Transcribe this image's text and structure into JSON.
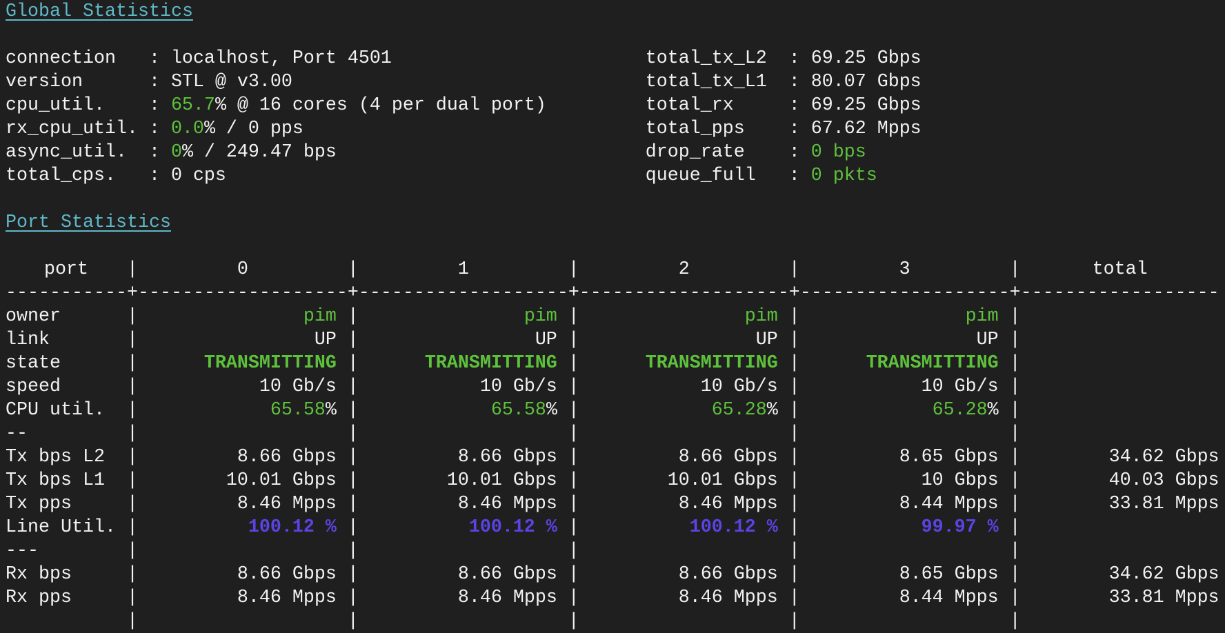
{
  "colors": {
    "background": "#1f1f1f",
    "text": "#f2f2f2",
    "heading": "#5fb8c8",
    "ok": "#5ec13c",
    "util": "#5a44e4"
  },
  "global": {
    "title": "Global Statistics",
    "left": [
      {
        "label": "connection",
        "value": [
          {
            "text": "localhost, Port 4501"
          }
        ]
      },
      {
        "label": "version",
        "value": [
          {
            "text": "STL @ v3.00"
          }
        ]
      },
      {
        "label": "cpu_util.",
        "value": [
          {
            "text": "65.7",
            "style": "green"
          },
          {
            "text": "% @ 16 cores (4 per dual port)"
          }
        ]
      },
      {
        "label": "rx_cpu_util.",
        "value": [
          {
            "text": "0.0",
            "style": "green"
          },
          {
            "text": "% / 0 pps"
          }
        ]
      },
      {
        "label": "async_util.",
        "value": [
          {
            "text": "0",
            "style": "green"
          },
          {
            "text": "% / 249.47 bps"
          }
        ]
      },
      {
        "label": "total_cps.",
        "value": [
          {
            "text": "0 cps"
          }
        ]
      }
    ],
    "right": [
      {
        "label": "total_tx_L2",
        "value": [
          {
            "text": "69.25 Gbps"
          }
        ]
      },
      {
        "label": "total_tx_L1",
        "value": [
          {
            "text": "80.07 Gbps"
          }
        ]
      },
      {
        "label": "total_rx",
        "value": [
          {
            "text": "69.25 Gbps"
          }
        ]
      },
      {
        "label": "total_pps",
        "value": [
          {
            "text": "67.62 Mpps"
          }
        ]
      },
      {
        "label": "drop_rate",
        "value": [
          {
            "text": "0 bps",
            "style": "green"
          }
        ]
      },
      {
        "label": "queue_full",
        "value": [
          {
            "text": "0 pkts",
            "style": "green"
          }
        ]
      }
    ]
  },
  "ports": {
    "title": "Port Statistics",
    "header": {
      "label": "port",
      "columns": [
        "0",
        "1",
        "2",
        "3",
        "total"
      ]
    },
    "rows": [
      {
        "label": "owner",
        "cells": [
          [
            {
              "text": "pim",
              "style": "green"
            }
          ],
          [
            {
              "text": "pim",
              "style": "green"
            }
          ],
          [
            {
              "text": "pim",
              "style": "green"
            }
          ],
          [
            {
              "text": "pim",
              "style": "green"
            }
          ],
          []
        ]
      },
      {
        "label": "link",
        "cells": [
          [
            {
              "text": "UP"
            }
          ],
          [
            {
              "text": "UP"
            }
          ],
          [
            {
              "text": "UP"
            }
          ],
          [
            {
              "text": "UP"
            }
          ],
          []
        ]
      },
      {
        "label": "state",
        "cells": [
          [
            {
              "text": "TRANSMITTING",
              "style": "green bold"
            }
          ],
          [
            {
              "text": "TRANSMITTING",
              "style": "green bold"
            }
          ],
          [
            {
              "text": "TRANSMITTING",
              "style": "green bold"
            }
          ],
          [
            {
              "text": "TRANSMITTING",
              "style": "green bold"
            }
          ],
          []
        ]
      },
      {
        "label": "speed",
        "cells": [
          [
            {
              "text": "10 Gb/s"
            }
          ],
          [
            {
              "text": "10 Gb/s"
            }
          ],
          [
            {
              "text": "10 Gb/s"
            }
          ],
          [
            {
              "text": "10 Gb/s"
            }
          ],
          []
        ]
      },
      {
        "label": "CPU util.",
        "cells": [
          [
            {
              "text": "65.58",
              "style": "green"
            },
            {
              "text": "%"
            }
          ],
          [
            {
              "text": "65.58",
              "style": "green"
            },
            {
              "text": "%"
            }
          ],
          [
            {
              "text": "65.28",
              "style": "green"
            },
            {
              "text": "%"
            }
          ],
          [
            {
              "text": "65.28",
              "style": "green"
            },
            {
              "text": "%"
            }
          ],
          []
        ]
      },
      {
        "label": "--",
        "cells": [
          [],
          [],
          [],
          [],
          []
        ]
      },
      {
        "label": "Tx bps L2",
        "cells": [
          [
            {
              "text": "8.66 Gbps"
            }
          ],
          [
            {
              "text": "8.66 Gbps"
            }
          ],
          [
            {
              "text": "8.66 Gbps"
            }
          ],
          [
            {
              "text": "8.65 Gbps"
            }
          ],
          [
            {
              "text": "34.62 Gbps"
            }
          ]
        ]
      },
      {
        "label": "Tx bps L1",
        "cells": [
          [
            {
              "text": "10.01 Gbps"
            }
          ],
          [
            {
              "text": "10.01 Gbps"
            }
          ],
          [
            {
              "text": "10.01 Gbps"
            }
          ],
          [
            {
              "text": "10 Gbps"
            }
          ],
          [
            {
              "text": "40.03 Gbps"
            }
          ]
        ]
      },
      {
        "label": "Tx pps",
        "cells": [
          [
            {
              "text": "8.46 Mpps"
            }
          ],
          [
            {
              "text": "8.46 Mpps"
            }
          ],
          [
            {
              "text": "8.46 Mpps"
            }
          ],
          [
            {
              "text": "8.44 Mpps"
            }
          ],
          [
            {
              "text": "33.81 Mpps"
            }
          ]
        ]
      },
      {
        "label": "Line Util.",
        "cells": [
          [
            {
              "text": "100.12 %",
              "style": "purple"
            }
          ],
          [
            {
              "text": "100.12 %",
              "style": "purple"
            }
          ],
          [
            {
              "text": "100.12 %",
              "style": "purple"
            }
          ],
          [
            {
              "text": "99.97 %",
              "style": "purple"
            }
          ],
          []
        ]
      },
      {
        "label": "---",
        "cells": [
          [],
          [],
          [],
          [],
          []
        ]
      },
      {
        "label": "Rx bps",
        "cells": [
          [
            {
              "text": "8.66 Gbps"
            }
          ],
          [
            {
              "text": "8.66 Gbps"
            }
          ],
          [
            {
              "text": "8.66 Gbps"
            }
          ],
          [
            {
              "text": "8.65 Gbps"
            }
          ],
          [
            {
              "text": "34.62 Gbps"
            }
          ]
        ]
      },
      {
        "label": "Rx pps",
        "cells": [
          [
            {
              "text": "8.46 Mpps"
            }
          ],
          [
            {
              "text": "8.46 Mpps"
            }
          ],
          [
            {
              "text": "8.46 Mpps"
            }
          ],
          [
            {
              "text": "8.44 Mpps"
            }
          ],
          [
            {
              "text": "33.81 Mpps"
            }
          ]
        ]
      },
      {
        "label": "",
        "cells": [
          [],
          [],
          [],
          [],
          []
        ]
      }
    ]
  }
}
